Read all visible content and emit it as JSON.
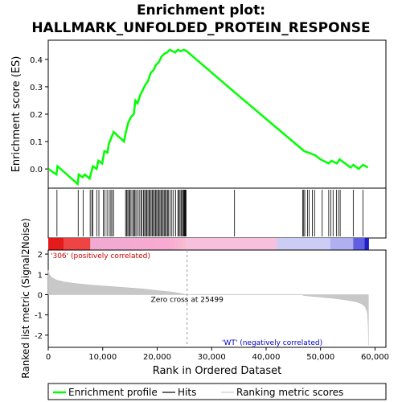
{
  "chart_data": {
    "type": "line",
    "title_line1": "Enrichment plot:",
    "title_line2": "HALLMARK_UNFOLDED_PROTEIN_RESPONSE",
    "top_panel": {
      "ylabel": "Enrichment score (ES)",
      "ylim": [
        -0.07,
        0.47
      ],
      "yticks": [
        0.0,
        0.1,
        0.2,
        0.3,
        0.4
      ],
      "ytick_labels": [
        "0.0",
        "0.1",
        "0.2",
        "0.3",
        "0.4"
      ],
      "line_color": "#00ff00",
      "es_curve": [
        [
          0,
          0.0
        ],
        [
          1500,
          -0.02
        ],
        [
          1700,
          0.01
        ],
        [
          5400,
          -0.055
        ],
        [
          5600,
          -0.02
        ],
        [
          6300,
          -0.03
        ],
        [
          6700,
          -0.02
        ],
        [
          7600,
          -0.035
        ],
        [
          8200,
          0.01
        ],
        [
          8900,
          0.0
        ],
        [
          9200,
          0.03
        ],
        [
          9900,
          0.02
        ],
        [
          10300,
          0.065
        ],
        [
          10900,
          0.06
        ],
        [
          11100,
          0.09
        ],
        [
          11500,
          0.11
        ],
        [
          12000,
          0.135
        ],
        [
          12800,
          0.12
        ],
        [
          13400,
          0.11
        ],
        [
          13900,
          0.1
        ],
        [
          14200,
          0.13
        ],
        [
          14700,
          0.17
        ],
        [
          15200,
          0.19
        ],
        [
          15700,
          0.2
        ],
        [
          16000,
          0.25
        ],
        [
          16400,
          0.24
        ],
        [
          16900,
          0.27
        ],
        [
          17400,
          0.29
        ],
        [
          17900,
          0.31
        ],
        [
          18300,
          0.32
        ],
        [
          18800,
          0.35
        ],
        [
          19300,
          0.36
        ],
        [
          19800,
          0.38
        ],
        [
          20300,
          0.39
        ],
        [
          20800,
          0.41
        ],
        [
          21300,
          0.42
        ],
        [
          21800,
          0.425
        ],
        [
          22300,
          0.435
        ],
        [
          22800,
          0.43
        ],
        [
          23300,
          0.425
        ],
        [
          23800,
          0.435
        ],
        [
          24300,
          0.43
        ],
        [
          24900,
          0.435
        ],
        [
          25400,
          0.43
        ],
        [
          34200,
          0.28
        ],
        [
          47000,
          0.065
        ],
        [
          48000,
          0.058
        ],
        [
          49000,
          0.05
        ],
        [
          50000,
          0.035
        ],
        [
          51000,
          0.025
        ],
        [
          51500,
          0.02
        ],
        [
          52000,
          0.03
        ],
        [
          52500,
          0.025
        ],
        [
          53000,
          0.02
        ],
        [
          53500,
          0.035
        ],
        [
          54500,
          0.02
        ],
        [
          55500,
          0.005
        ],
        [
          56000,
          0.015
        ],
        [
          57000,
          0.0
        ],
        [
          57800,
          0.015
        ],
        [
          58700,
          0.005
        ]
      ]
    },
    "hits_panel": {
      "hit_positions": [
        1600,
        5500,
        6400,
        7700,
        8000,
        8200,
        8900,
        9300,
        10100,
        10400,
        10800,
        11200,
        11500,
        11700,
        12000,
        14200,
        14400,
        14600,
        14800,
        15000,
        15200,
        15500,
        15700,
        15900,
        16100,
        16400,
        16700,
        17000,
        17200,
        17500,
        17700,
        17900,
        18100,
        18300,
        18500,
        18700,
        18900,
        19100,
        19300,
        19500,
        19700,
        19900,
        20100,
        20300,
        20500,
        20700,
        20900,
        21100,
        21300,
        21500,
        21700,
        21900,
        22100,
        22400,
        22700,
        23000,
        23400,
        23800,
        24000,
        24200,
        24400,
        24600,
        24800,
        24900,
        25000,
        25100,
        25200,
        25300,
        34200,
        46700,
        46900,
        47100,
        47600,
        47900,
        48500,
        48900,
        50300,
        51500,
        51900,
        52300,
        52900,
        53300,
        53600,
        56000,
        57800
      ]
    },
    "bottom_panel": {
      "ylabel": "Ranked list metric (Signal2Noise)",
      "xlabel": "Rank in Ordered Dataset",
      "ylim": [
        -2.6,
        2.2
      ],
      "yticks": [
        -2,
        -1,
        0,
        1,
        2
      ],
      "ytick_labels": [
        "-2",
        "-1",
        "0",
        "1",
        "2"
      ],
      "xlim": [
        0,
        62000
      ],
      "xticks": [
        0,
        10000,
        20000,
        30000,
        40000,
        50000,
        60000
      ],
      "xtick_labels": [
        "0",
        "10,000",
        "20,000",
        "30,000",
        "40,000",
        "50,000",
        "60,000"
      ],
      "metric_curve": [
        [
          0,
          1.2
        ],
        [
          200,
          1.0
        ],
        [
          600,
          0.85
        ],
        [
          1500,
          0.72
        ],
        [
          3000,
          0.62
        ],
        [
          5000,
          0.55
        ],
        [
          8000,
          0.47
        ],
        [
          11000,
          0.41
        ],
        [
          14000,
          0.35
        ],
        [
          17000,
          0.29
        ],
        [
          20000,
          0.2
        ],
        [
          23000,
          0.12
        ],
        [
          25499,
          0.0
        ],
        [
          46500,
          0.0
        ],
        [
          47000,
          -0.05
        ],
        [
          50000,
          -0.12
        ],
        [
          53000,
          -0.2
        ],
        [
          55000,
          -0.28
        ],
        [
          56500,
          -0.35
        ],
        [
          57500,
          -0.45
        ],
        [
          58200,
          -0.6
        ],
        [
          58600,
          -0.9
        ],
        [
          58750,
          -1.6
        ],
        [
          58800,
          -2.5
        ]
      ],
      "zero_cross_label": "Zero cross at 25499",
      "zero_cross_rank": 25499,
      "pos_label": "'306' (positively correlated)",
      "neg_label": "'WT' (negatively correlated)",
      "max_rank": 58800
    },
    "legend": [
      {
        "label": "Enrichment profile",
        "color": "#00ff00"
      },
      {
        "label": "Hits",
        "color": "#000000"
      },
      {
        "label": "Ranking metric scores",
        "color": "#cccccc"
      }
    ]
  }
}
